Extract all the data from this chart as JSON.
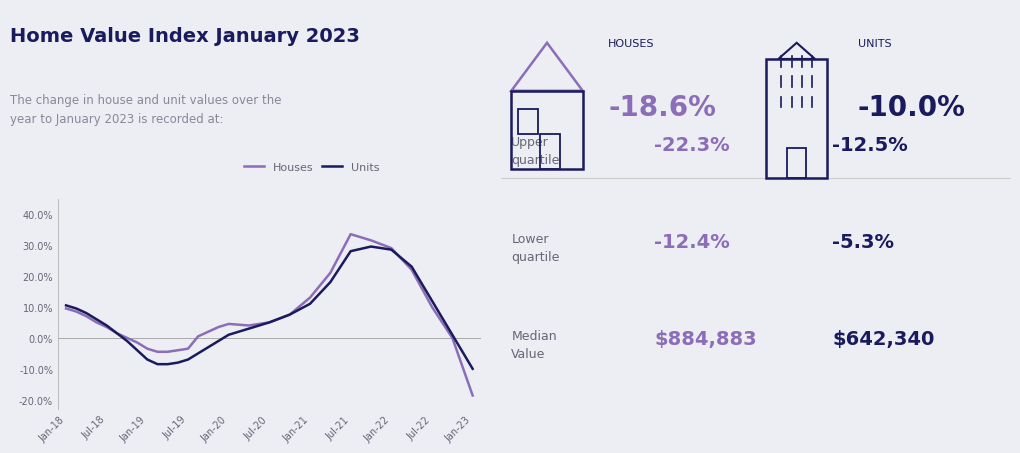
{
  "title": "Home Value Index January 2023",
  "subtitle": "The change in house and unit values over the\nyear to January 2023 is recorded at:",
  "bg_color": "#edeef3",
  "title_color": "#1a1a5e",
  "subtitle_color": "#888899",
  "houses_color": "#8b6db8",
  "units_color": "#1a1a5e",
  "houses_pct": "-18.6%",
  "units_pct": "-10.0%",
  "upper_q_houses": "-22.3%",
  "upper_q_units": "-12.5%",
  "lower_q_houses": "-12.4%",
  "lower_q_units": "-5.3%",
  "median_houses": "$884,883",
  "median_units": "$642,340",
  "x_labels": [
    "Jan-18",
    "Jul-18",
    "Jan-19",
    "Jul-19",
    "Jan-20",
    "Jul-20",
    "Jan-21",
    "Jul-21",
    "Jan-22",
    "Jul-22",
    "Jan-23"
  ],
  "hx": [
    0,
    0.25,
    0.5,
    0.75,
    1.0,
    1.25,
    1.5,
    1.75,
    2.0,
    2.25,
    2.5,
    2.75,
    3.0,
    3.25,
    3.5,
    3.75,
    4.0,
    4.5,
    5.0,
    5.5,
    6.0,
    6.5,
    7.0,
    7.5,
    8.0,
    8.5,
    9.0,
    9.5,
    10.0
  ],
  "hy": [
    9.5,
    8.5,
    7.0,
    5.0,
    3.5,
    1.5,
    0.0,
    -1.5,
    -3.5,
    -4.5,
    -4.5,
    -4.0,
    -3.5,
    0.5,
    2.0,
    3.5,
    4.5,
    4.0,
    5.0,
    7.5,
    13.0,
    21.0,
    33.5,
    31.5,
    29.0,
    22.0,
    10.0,
    0.0,
    -18.6
  ],
  "ux": [
    0,
    0.25,
    0.5,
    0.75,
    1.0,
    1.25,
    1.5,
    1.75,
    2.0,
    2.25,
    2.5,
    2.75,
    3.0,
    3.25,
    3.5,
    3.75,
    4.0,
    4.5,
    5.0,
    5.5,
    6.0,
    6.5,
    7.0,
    7.5,
    8.0,
    8.5,
    9.0,
    9.5,
    10.0
  ],
  "uy": [
    10.5,
    9.5,
    8.0,
    6.0,
    4.0,
    1.5,
    -1.0,
    -4.0,
    -7.0,
    -8.5,
    -8.5,
    -8.0,
    -7.0,
    -5.0,
    -3.0,
    -1.0,
    1.0,
    3.0,
    5.0,
    7.5,
    11.0,
    18.0,
    28.0,
    29.5,
    28.5,
    23.0,
    12.0,
    1.0,
    -10.0
  ],
  "divider_color": "#cccccc",
  "label_color": "#666677",
  "icon_purple": "#8b6db8",
  "icon_dark": "#1a1a5e"
}
